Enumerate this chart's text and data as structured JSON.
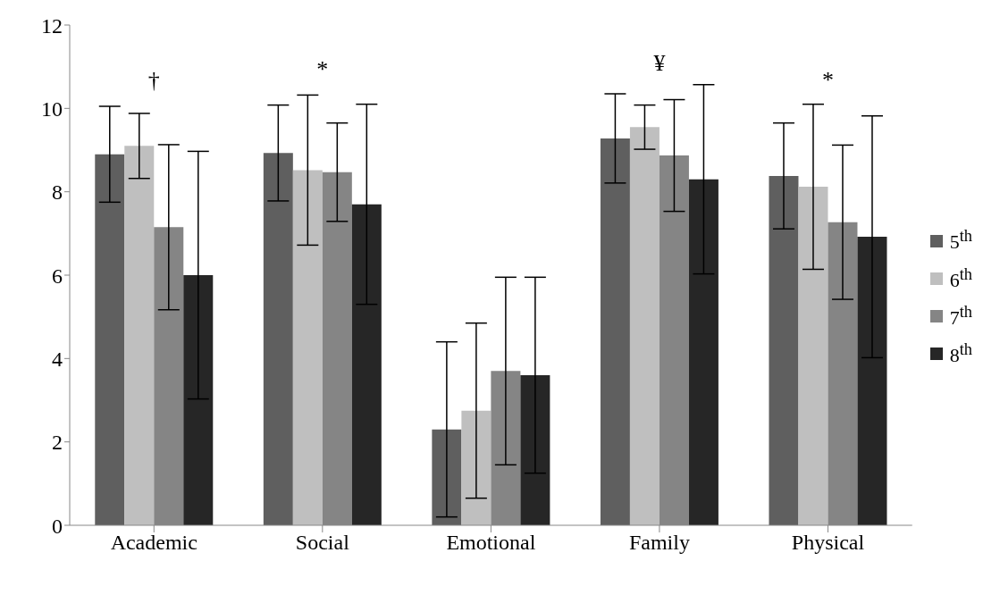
{
  "chart_data": {
    "type": "bar",
    "categories": [
      "Academic",
      "Social",
      "Emotional",
      "Family",
      "Physical"
    ],
    "series": [
      {
        "name": "5$^{th}$",
        "color": "#5f5f5f",
        "values": [
          8.9,
          8.93,
          2.3,
          9.28,
          8.38
        ],
        "errors": [
          1.15,
          1.15,
          2.1,
          1.07,
          1.27
        ]
      },
      {
        "name": "6$^{th}$",
        "color": "#bfbfbf",
        "values": [
          9.1,
          8.52,
          2.75,
          9.55,
          8.12
        ],
        "errors": [
          0.78,
          1.8,
          2.1,
          0.53,
          1.98
        ]
      },
      {
        "name": "7$^{th}$",
        "color": "#858585",
        "values": [
          7.15,
          8.47,
          3.7,
          8.87,
          7.27
        ],
        "errors": [
          1.98,
          1.18,
          2.25,
          1.34,
          1.85
        ]
      },
      {
        "name": "8$^{th}$",
        "color": "#262626",
        "values": [
          6.0,
          7.7,
          3.6,
          8.3,
          6.92
        ],
        "errors": [
          2.97,
          2.4,
          2.35,
          2.27,
          2.9
        ]
      }
    ],
    "ylim": [
      0,
      12
    ],
    "yticks": [
      0,
      2,
      4,
      6,
      8,
      10,
      12
    ],
    "grid": false,
    "legend": "right",
    "annotations": [
      "†",
      "*",
      "¥",
      "*"
    ]
  }
}
